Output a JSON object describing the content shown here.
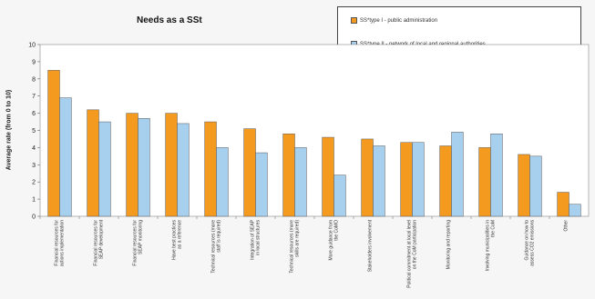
{
  "chart_data": {
    "type": "bar",
    "title": "Needs as a SSt",
    "ylabel": "Average rate (from 0 to 10)",
    "xlabel": "",
    "ylim": [
      0,
      10
    ],
    "yticks": [
      "0",
      "1",
      "2",
      "3",
      "4",
      "5",
      "6",
      "7",
      "8",
      "9",
      "10"
    ],
    "grid": false,
    "legend_position": "top-right",
    "categories": [
      "Financial resources for actions implementation",
      "Financial resources for SEAP development",
      "Financial resources for SEAP monitoring",
      "Have best practices as a reference",
      "Technical resources (more staff is required)",
      "Integration of SEAP in local structures",
      "Technical resources (more skills are required)",
      "More guidance from the CoMO",
      "Stakeholders involvement",
      "Political commitment at local level on the CoM participation",
      "Monitoring and reporting",
      "Involving municipalities in the CoM",
      "Guidance on how to assess CO2 emissions",
      "Other"
    ],
    "series": [
      {
        "name": "SS*type I - public administration",
        "color": "#f39a1f",
        "values": [
          8.5,
          6.2,
          6.0,
          6.0,
          5.5,
          5.1,
          4.8,
          4.6,
          4.5,
          4.3,
          4.1,
          4.0,
          3.6,
          1.4
        ]
      },
      {
        "name": "SS*type II - network of local and regional authorities",
        "color": "#a7cfee",
        "values": [
          6.9,
          5.5,
          5.7,
          5.4,
          4.0,
          3.7,
          4.0,
          2.4,
          4.1,
          4.3,
          4.9,
          4.8,
          3.5,
          0.7
        ]
      }
    ]
  }
}
